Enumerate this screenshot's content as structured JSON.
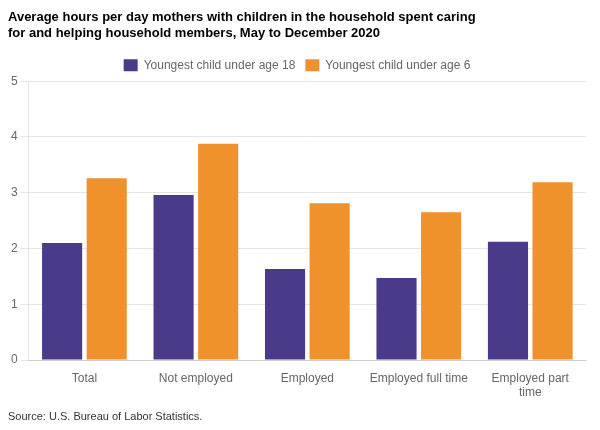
{
  "chart_data": {
    "type": "bar",
    "title": "Average hours per day mothers with children in the household spent caring\nfor and helping household members, May to December 2020",
    "annotation": "Source: U.S. Bureau of Labor Statistics.",
    "categories": [
      "Total",
      "Not employed",
      "Employed",
      "Employed full time",
      "Employed part\ntime"
    ],
    "series": [
      {
        "name": "Youngest child under age 18",
        "color": "#4b3a8a",
        "values": [
          2.1,
          2.96,
          1.63,
          1.47,
          2.12
        ]
      },
      {
        "name": "Youngest child under age 6",
        "color": "#f0922b",
        "values": [
          3.26,
          3.88,
          2.81,
          2.65,
          3.19
        ]
      }
    ],
    "ylim": [
      0,
      5
    ],
    "yticks": [
      0,
      1,
      2,
      3,
      4,
      5
    ],
    "grid": true,
    "legend": "top"
  }
}
